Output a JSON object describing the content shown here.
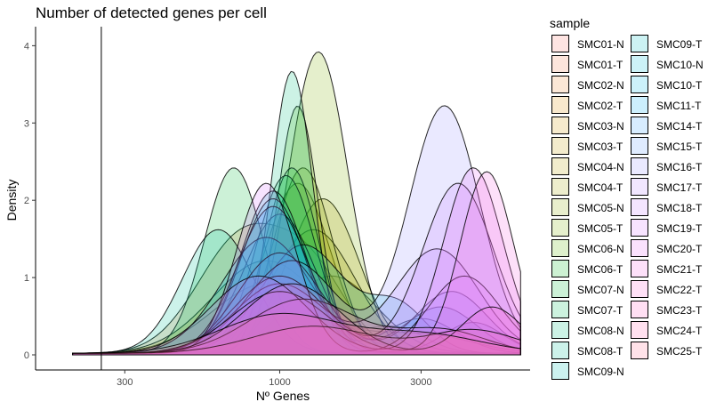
{
  "chart_data": {
    "type": "area",
    "title": "Number of detected genes per cell",
    "xlabel": "Nº Genes",
    "ylabel": "Density",
    "x_scale": "log10",
    "xlim": [
      150,
      7000
    ],
    "ylim": [
      0,
      4.2
    ],
    "x_ticks": [
      300,
      1000,
      3000
    ],
    "x_tick_labels": [
      "300",
      "1000",
      "3000"
    ],
    "y_ticks": [
      0,
      1,
      2,
      3,
      4
    ],
    "y_tick_labels": [
      "0",
      "1",
      "2",
      "3",
      "4"
    ],
    "threshold_line_x": 250,
    "grid": false,
    "legend": {
      "title": "sample",
      "position": "right",
      "columns": 2
    },
    "fill_opacity": 0.2,
    "series": [
      {
        "name": "SMC01-N",
        "color": "#F8766D",
        "peaks": [
          [
            900,
            0.9,
            0.18
          ],
          [
            2500,
            0.3,
            0.1
          ]
        ]
      },
      {
        "name": "SMC01-T",
        "color": "#F17E4F",
        "peaks": [
          [
            1300,
            0.35,
            0.2
          ],
          [
            3300,
            0.2,
            0.15
          ]
        ]
      },
      {
        "name": "SMC02-N",
        "color": "#E98633",
        "peaks": [
          [
            750,
            1.5,
            0.15
          ],
          [
            1300,
            0.9,
            0.12
          ]
        ]
      },
      {
        "name": "SMC02-T",
        "color": "#DE8C00",
        "peaks": [
          [
            1500,
            1.0,
            0.15
          ]
        ]
      },
      {
        "name": "SMC03-N",
        "color": "#D09400",
        "peaks": [
          [
            1150,
            2.2,
            0.11
          ]
        ]
      },
      {
        "name": "SMC03-T",
        "color": "#C49A00",
        "peaks": [
          [
            900,
            1.2,
            0.18
          ]
        ]
      },
      {
        "name": "SMC04-N",
        "color": "#B79F00",
        "peaks": [
          [
            1400,
            2.0,
            0.12
          ]
        ]
      },
      {
        "name": "SMC04-T",
        "color": "#A3A500",
        "peaks": [
          [
            1300,
            1.6,
            0.14
          ]
        ]
      },
      {
        "name": "SMC05-N",
        "color": "#8EAB00",
        "peaks": [
          [
            1200,
            2.4,
            0.1
          ]
        ]
      },
      {
        "name": "SMC05-T",
        "color": "#7CAE00",
        "peaks": [
          [
            1350,
            3.9,
            0.1
          ]
        ]
      },
      {
        "name": "SMC06-N",
        "color": "#5BB300",
        "peaks": [
          [
            1150,
            3.2,
            0.07
          ]
        ]
      },
      {
        "name": "SMC06-T",
        "color": "#00B81F",
        "peaks": [
          [
            1100,
            2.4,
            0.09
          ]
        ]
      },
      {
        "name": "SMC07-N",
        "color": "#00BA38",
        "peaks": [
          [
            700,
            2.4,
            0.1
          ]
        ]
      },
      {
        "name": "SMC07-T",
        "color": "#00BC59",
        "peaks": [
          [
            1050,
            2.3,
            0.1
          ]
        ]
      },
      {
        "name": "SMC08-N",
        "color": "#00BF7D",
        "peaks": [
          [
            1100,
            3.65,
            0.07
          ]
        ]
      },
      {
        "name": "SMC08-T",
        "color": "#00C094",
        "peaks": [
          [
            620,
            1.6,
            0.12
          ]
        ]
      },
      {
        "name": "SMC09-N",
        "color": "#00C0AF",
        "peaks": [
          [
            1000,
            1.8,
            0.12
          ]
        ]
      },
      {
        "name": "SMC09-T",
        "color": "#00BFC4",
        "peaks": [
          [
            950,
            2.1,
            0.11
          ],
          [
            3000,
            0.45,
            0.12
          ]
        ]
      },
      {
        "name": "SMC10-N",
        "color": "#00BCD8",
        "peaks": [
          [
            1200,
            1.4,
            0.14
          ],
          [
            2500,
            0.6,
            0.1
          ]
        ]
      },
      {
        "name": "SMC10-T",
        "color": "#00B8E7",
        "peaks": [
          [
            950,
            2.0,
            0.11
          ]
        ]
      },
      {
        "name": "SMC11-T",
        "color": "#00B0F6",
        "peaks": [
          [
            900,
            1.5,
            0.15
          ],
          [
            3500,
            0.6,
            0.12
          ]
        ]
      },
      {
        "name": "SMC14-T",
        "color": "#35A2FF",
        "peaks": [
          [
            950,
            1.9,
            0.12
          ],
          [
            4500,
            0.4,
            0.1
          ]
        ]
      },
      {
        "name": "SMC15-T",
        "color": "#619CFF",
        "peaks": [
          [
            1000,
            1.3,
            0.14
          ],
          [
            3800,
            0.8,
            0.12
          ]
        ]
      },
      {
        "name": "SMC16-T",
        "color": "#9590FF",
        "peaks": [
          [
            1100,
            1.2,
            0.15
          ],
          [
            3600,
            3.2,
            0.12
          ]
        ]
      },
      {
        "name": "SMC17-T",
        "color": "#B983FF",
        "peaks": [
          [
            1000,
            0.9,
            0.15
          ],
          [
            3400,
            1.35,
            0.14
          ]
        ]
      },
      {
        "name": "SMC18-T",
        "color": "#C77CFF",
        "peaks": [
          [
            1000,
            1.0,
            0.15
          ],
          [
            4000,
            2.2,
            0.12
          ]
        ]
      },
      {
        "name": "SMC19-T",
        "color": "#D575FE",
        "peaks": [
          [
            900,
            2.2,
            0.1
          ],
          [
            4200,
            1.0,
            0.12
          ]
        ]
      },
      {
        "name": "SMC20-T",
        "color": "#E76BF3",
        "peaks": [
          [
            850,
            1.0,
            0.16
          ],
          [
            4500,
            2.4,
            0.1
          ]
        ]
      },
      {
        "name": "SMC21-T",
        "color": "#F564E3",
        "peaks": [
          [
            1000,
            0.8,
            0.16
          ],
          [
            5000,
            2.35,
            0.09
          ]
        ]
      },
      {
        "name": "SMC22-T",
        "color": "#FA62D4",
        "peaks": [
          [
            1200,
            0.7,
            0.18
          ],
          [
            3500,
            0.3,
            0.15
          ]
        ]
      },
      {
        "name": "SMC23-T",
        "color": "#FF61C3",
        "peaks": [
          [
            1100,
            0.9,
            0.16
          ],
          [
            5200,
            0.6,
            0.1
          ]
        ]
      },
      {
        "name": "SMC24-T",
        "color": "#FF64B0",
        "peaks": [
          [
            1300,
            0.35,
            0.2
          ],
          [
            4500,
            0.3,
            0.15
          ]
        ]
      },
      {
        "name": "SMC25-T",
        "color": "#FF6C91",
        "peaks": [
          [
            1000,
            0.5,
            0.2
          ],
          [
            3000,
            0.25,
            0.2
          ]
        ]
      }
    ]
  }
}
